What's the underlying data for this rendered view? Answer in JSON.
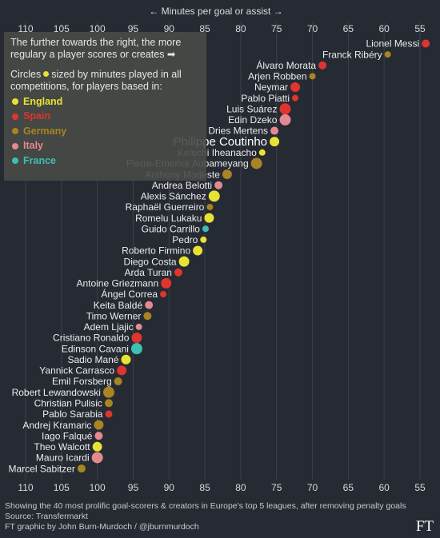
{
  "chart_data": {
    "type": "scatter",
    "axis_title": "← Minutes per goal or assist →",
    "x_ticks": [
      110,
      105,
      100,
      95,
      90,
      85,
      80,
      75,
      70,
      65,
      60,
      55
    ],
    "xlim": [
      112,
      53
    ],
    "reversed_x": true,
    "grid": "vertical",
    "highlight": "Philippe Coutinho",
    "league_colors": {
      "England": "#e8e233",
      "Spain": "#e0342f",
      "Germany": "#a88422",
      "Italy": "#e38a90",
      "France": "#3cc0b3"
    },
    "points": [
      {
        "name": "Lionel Messi",
        "x": 54.2,
        "league": "Spain",
        "size": 5
      },
      {
        "name": "Franck Ribéry",
        "x": 59.5,
        "league": "Germany",
        "size": 4
      },
      {
        "name": "Álvaro Morata",
        "x": 68.6,
        "league": "Spain",
        "size": 5
      },
      {
        "name": "Arjen Robben",
        "x": 70.0,
        "league": "Germany",
        "size": 4
      },
      {
        "name": "Neymar",
        "x": 72.4,
        "league": "Spain",
        "size": 6
      },
      {
        "name": "Pablo Piatti",
        "x": 72.4,
        "league": "Spain",
        "size": 4
      },
      {
        "name": "Luis Suárez",
        "x": 73.8,
        "league": "Spain",
        "size": 7
      },
      {
        "name": "Edin Dzeko",
        "x": 73.8,
        "league": "Italy",
        "size": 7
      },
      {
        "name": "Dries Mertens",
        "x": 75.3,
        "league": "Italy",
        "size": 5
      },
      {
        "name": "Philippe Coutinho",
        "x": 75.3,
        "league": "England",
        "size": 6
      },
      {
        "name": "Kelechi Iheanacho",
        "x": 77.0,
        "league": "England",
        "size": 4
      },
      {
        "name": "Pierre-Emerick Aubameyang",
        "x": 77.8,
        "league": "Germany",
        "size": 7
      },
      {
        "name": "Anthony Modeste",
        "x": 81.9,
        "league": "Germany",
        "size": 6
      },
      {
        "name": "Andrea Belotti",
        "x": 83.1,
        "league": "Italy",
        "size": 5
      },
      {
        "name": "Alexis Sánchez",
        "x": 83.7,
        "league": "England",
        "size": 7
      },
      {
        "name": "Raphaël Guerreiro",
        "x": 84.3,
        "league": "Germany",
        "size": 4
      },
      {
        "name": "Romelu Lukaku",
        "x": 84.4,
        "league": "England",
        "size": 6
      },
      {
        "name": "Guido Carrillo",
        "x": 84.9,
        "league": "France",
        "size": 4
      },
      {
        "name": "Pedro",
        "x": 85.2,
        "league": "England",
        "size": 4
      },
      {
        "name": "Roberto Firmino",
        "x": 86.0,
        "league": "England",
        "size": 6
      },
      {
        "name": "Diego Costa",
        "x": 87.9,
        "league": "England",
        "size": 6.5
      },
      {
        "name": "Arda Turan",
        "x": 88.7,
        "league": "Spain",
        "size": 5
      },
      {
        "name": "Antoine Griezmann",
        "x": 90.4,
        "league": "Spain",
        "size": 6.5
      },
      {
        "name": "Ángel Correa",
        "x": 90.8,
        "league": "Spain",
        "size": 4
      },
      {
        "name": "Keita Baldé",
        "x": 92.8,
        "league": "Italy",
        "size": 5
      },
      {
        "name": "Timo Werner",
        "x": 93.0,
        "league": "Germany",
        "size": 5
      },
      {
        "name": "Adem Ljajic",
        "x": 94.2,
        "league": "Italy",
        "size": 4
      },
      {
        "name": "Cristiano Ronaldo",
        "x": 94.5,
        "league": "Spain",
        "size": 6.5
      },
      {
        "name": "Edinson Cavani",
        "x": 94.5,
        "league": "France",
        "size": 7
      },
      {
        "name": "Sadio Mané",
        "x": 96.0,
        "league": "England",
        "size": 6
      },
      {
        "name": "Yannick Carrasco",
        "x": 96.6,
        "league": "Spain",
        "size": 6
      },
      {
        "name": "Emil Forsberg",
        "x": 97.1,
        "league": "Germany",
        "size": 5
      },
      {
        "name": "Robert Lewandowski",
        "x": 98.4,
        "league": "Germany",
        "size": 7
      },
      {
        "name": "Christian Pulisic",
        "x": 98.4,
        "league": "Germany",
        "size": 5
      },
      {
        "name": "Pablo Sarabia",
        "x": 98.4,
        "league": "Spain",
        "size": 4.5
      },
      {
        "name": "Andrej Kramaric",
        "x": 99.8,
        "league": "Germany",
        "size": 6
      },
      {
        "name": "Iago Falqué",
        "x": 99.8,
        "league": "Italy",
        "size": 5
      },
      {
        "name": "Theo Walcott",
        "x": 100.0,
        "league": "England",
        "size": 6
      },
      {
        "name": "Mauro Icardi",
        "x": 100.0,
        "league": "Italy",
        "size": 7
      },
      {
        "name": "Marcel Sabitzer",
        "x": 102.2,
        "league": "Germany",
        "size": 5
      }
    ]
  },
  "legend": {
    "intro": "The further towards the right, the more regulary a player scores or creates ➡",
    "size_note_before": "Circles",
    "size_note_after": "sized by minutes played in all competitions, for players based in:",
    "items": [
      {
        "label": "England",
        "color": "#e8e233"
      },
      {
        "label": "Spain",
        "color": "#e0342f"
      },
      {
        "label": "Germany",
        "color": "#a88422"
      },
      {
        "label": "Italy",
        "color": "#e38a90"
      },
      {
        "label": "France",
        "color": "#3cc0b3"
      }
    ]
  },
  "footer": {
    "line1": "Showing the 40 most prolific goal-scorers & creators in Europe's top 5 leagues, after removing penalty goals",
    "line2": "Source: Transfermarkt",
    "line3": "FT graphic by John Burn-Murdoch / @jburnmurdoch"
  },
  "brand": "FT"
}
